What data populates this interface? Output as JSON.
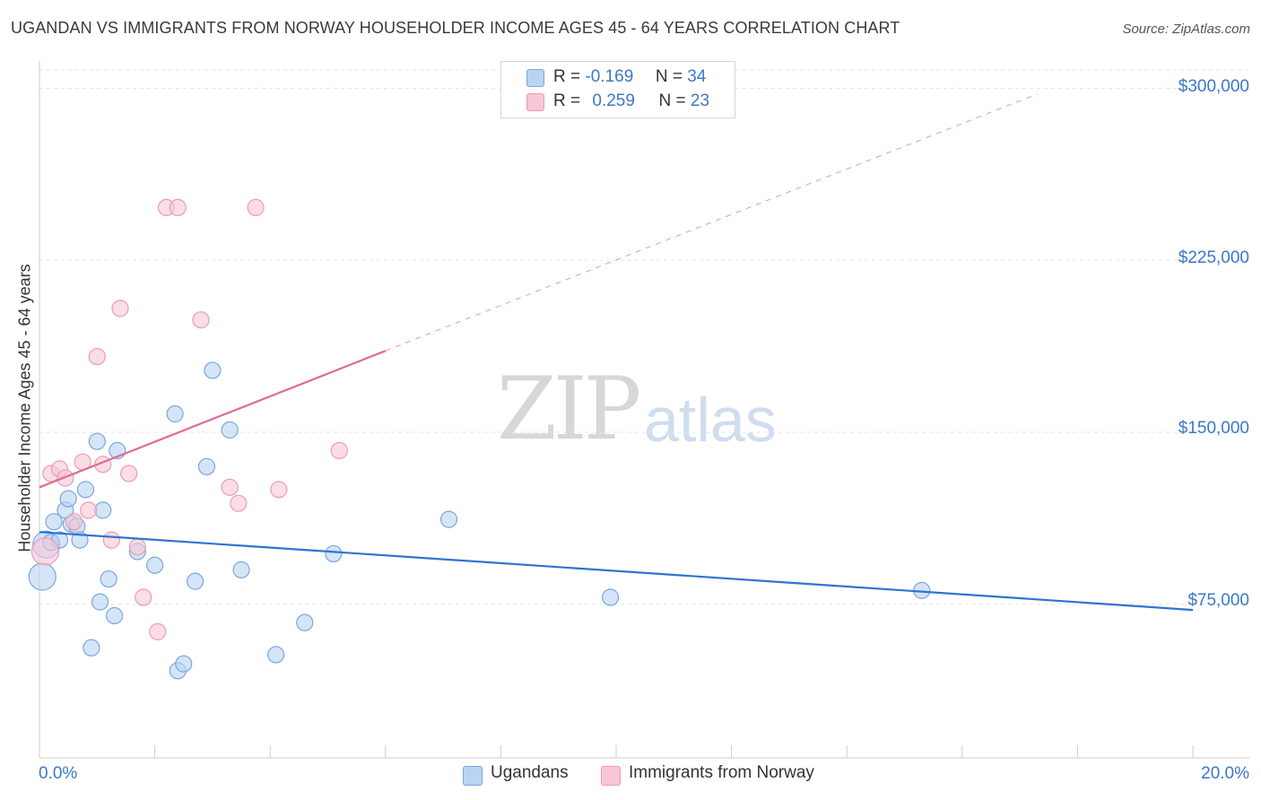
{
  "title": "UGANDAN VS IMMIGRANTS FROM NORWAY HOUSEHOLDER INCOME AGES 45 - 64 YEARS CORRELATION CHART",
  "source": "Source: ZipAtlas.com",
  "watermark": {
    "zip": "ZIP",
    "atlas": "atlas"
  },
  "colors": {
    "blue_fill": "#b9d3f3",
    "blue_stroke": "#7aa6de",
    "blue_line": "#2f73d0",
    "pink_fill": "#f8c6d5",
    "pink_stroke": "#ec9bb5",
    "pink_line": "#e06a94",
    "tick_text": "#3b78c7",
    "grid": "#e3e3e3"
  },
  "stats": {
    "blue": {
      "r_label": "R =",
      "r_value": "-0.169",
      "n_label": "N =",
      "n_value": "34"
    },
    "pink": {
      "r_label": "R =",
      "r_value": "0.259",
      "n_label": "N =",
      "n_value": "23"
    }
  },
  "legend": {
    "blue": "Ugandans",
    "pink": "Immigrants from Norway"
  },
  "chart_data": {
    "type": "scatter",
    "title": "UGANDAN VS IMMIGRANTS FROM NORWAY HOUSEHOLDER INCOME AGES 45 - 64 YEARS CORRELATION CHART",
    "xlabel": "",
    "ylabel": "Householder Income Ages 45 - 64 years",
    "xlim": [
      0,
      20
    ],
    "ylim": [
      8000,
      308000
    ],
    "x_tick_labels": [
      "0.0%",
      "20.0%"
    ],
    "y_ticks": [
      75000,
      150000,
      225000,
      300000
    ],
    "y_tick_labels": [
      "$75,000",
      "$150,000",
      "$225,000",
      "$300,000"
    ],
    "series": [
      {
        "name": "Ugandans",
        "color": "blue",
        "points": [
          {
            "x": 0.05,
            "y": 87000,
            "size": "large"
          },
          {
            "x": 0.12,
            "y": 101000,
            "size": "large"
          },
          {
            "x": 0.2,
            "y": 102000
          },
          {
            "x": 0.25,
            "y": 111000
          },
          {
            "x": 0.35,
            "y": 103000
          },
          {
            "x": 0.45,
            "y": 116000
          },
          {
            "x": 0.5,
            "y": 121000
          },
          {
            "x": 0.55,
            "y": 110000
          },
          {
            "x": 0.65,
            "y": 109000
          },
          {
            "x": 0.7,
            "y": 103000
          },
          {
            "x": 0.8,
            "y": 125000
          },
          {
            "x": 0.9,
            "y": 56000
          },
          {
            "x": 1.0,
            "y": 146000
          },
          {
            "x": 1.05,
            "y": 76000
          },
          {
            "x": 1.1,
            "y": 116000
          },
          {
            "x": 1.2,
            "y": 86000
          },
          {
            "x": 1.3,
            "y": 70000
          },
          {
            "x": 1.35,
            "y": 142000
          },
          {
            "x": 1.7,
            "y": 98000
          },
          {
            "x": 2.0,
            "y": 92000
          },
          {
            "x": 2.35,
            "y": 158000
          },
          {
            "x": 2.4,
            "y": 46000
          },
          {
            "x": 2.5,
            "y": 49000
          },
          {
            "x": 2.7,
            "y": 85000
          },
          {
            "x": 2.9,
            "y": 135000
          },
          {
            "x": 3.0,
            "y": 177000
          },
          {
            "x": 3.3,
            "y": 151000
          },
          {
            "x": 3.5,
            "y": 90000
          },
          {
            "x": 4.1,
            "y": 53000
          },
          {
            "x": 4.6,
            "y": 67000
          },
          {
            "x": 5.1,
            "y": 97000
          },
          {
            "x": 7.1,
            "y": 112000
          },
          {
            "x": 9.9,
            "y": 78000
          },
          {
            "x": 15.3,
            "y": 81000
          }
        ],
        "trend": {
          "x_start": 0,
          "y_start": 106500,
          "x_end": 20,
          "y_end": 72500,
          "dashed_from_x": null
        }
      },
      {
        "name": "Immigrants from Norway",
        "color": "pink",
        "points": [
          {
            "x": 0.1,
            "y": 98000,
            "size": "large"
          },
          {
            "x": 0.2,
            "y": 132000
          },
          {
            "x": 0.35,
            "y": 134000
          },
          {
            "x": 0.45,
            "y": 130000
          },
          {
            "x": 0.6,
            "y": 111000
          },
          {
            "x": 0.75,
            "y": 137000
          },
          {
            "x": 0.85,
            "y": 116000
          },
          {
            "x": 1.0,
            "y": 183000
          },
          {
            "x": 1.1,
            "y": 136000
          },
          {
            "x": 1.25,
            "y": 103000
          },
          {
            "x": 1.4,
            "y": 204000
          },
          {
            "x": 1.55,
            "y": 132000
          },
          {
            "x": 1.7,
            "y": 100000
          },
          {
            "x": 1.8,
            "y": 78000
          },
          {
            "x": 2.05,
            "y": 63000
          },
          {
            "x": 2.2,
            "y": 248000
          },
          {
            "x": 2.4,
            "y": 248000
          },
          {
            "x": 2.8,
            "y": 199000
          },
          {
            "x": 3.3,
            "y": 126000
          },
          {
            "x": 3.45,
            "y": 119000
          },
          {
            "x": 3.75,
            "y": 248000
          },
          {
            "x": 4.15,
            "y": 125000
          },
          {
            "x": 5.2,
            "y": 142000
          }
        ],
        "trend": {
          "x_start": 0,
          "y_start": 126000,
          "x_end": 6.0,
          "y_end": 185500,
          "dashed_to_x": 17.3,
          "dashed_to_y": 297500
        }
      }
    ]
  }
}
